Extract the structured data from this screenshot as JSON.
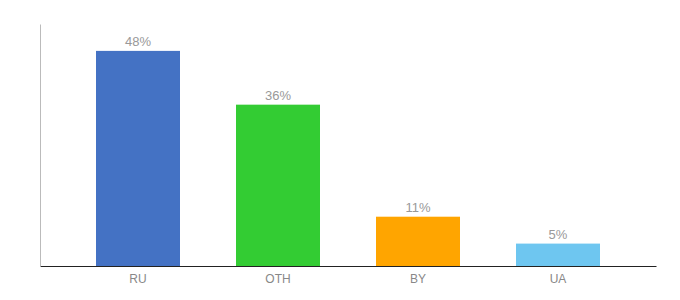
{
  "chart_data": {
    "type": "bar",
    "categories": [
      "RU",
      "OTH",
      "BY",
      "UA"
    ],
    "values": [
      48,
      36,
      11,
      5
    ],
    "value_labels": [
      "48%",
      "36%",
      "11%",
      "5%"
    ],
    "colors": [
      "#4472c4",
      "#33cc33",
      "#ffa500",
      "#6ec6f0"
    ],
    "ylim": [
      0,
      54
    ],
    "data_labels": true,
    "tick_labels": "x",
    "grid": false
  }
}
